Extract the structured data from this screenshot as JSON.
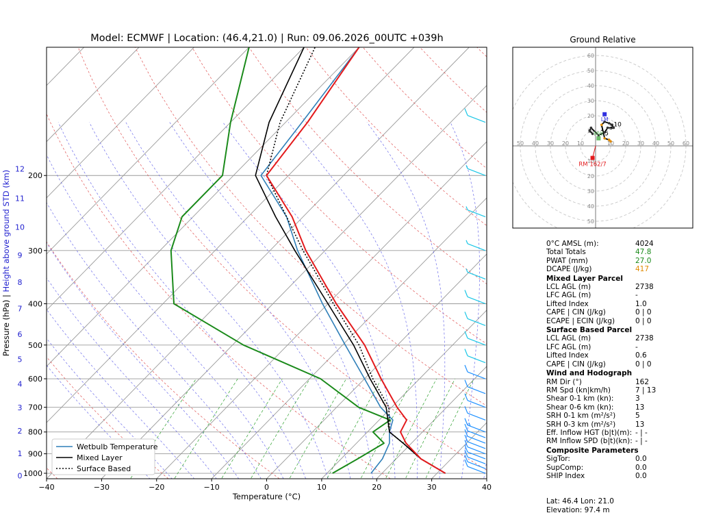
{
  "title": "Model: ECMWF | Location: (46.4,21.0) | Run: 09.06.2026_00UTC +039h",
  "hodo_title": "Ground Relative",
  "colors": {
    "temperature": "#e31a1c",
    "dewpoint": "#1a8a1a",
    "wetbulb": "#2f7fb8",
    "parcel": "#000000",
    "wind": "#1e90ff",
    "height": "#1f1fcf"
  },
  "chart_data": [
    {
      "type": "line",
      "name": "skew-t",
      "xlabel": "Temperature (°C)",
      "ylabel": "Pressure (hPa)   |   Height above ground STD (km)",
      "xlim": [
        -40,
        40
      ],
      "ylim": [
        1030,
        100
      ],
      "y_scale": "log",
      "x_ticks": [
        "−40",
        "−30",
        "−20",
        "−10",
        "0",
        "10",
        "20",
        "30",
        "40"
      ],
      "p_ticks": [
        "1000",
        "900",
        "800",
        "700",
        "600",
        "500",
        "400",
        "300",
        "200"
      ],
      "km_ticks": [
        "0",
        "1",
        "2",
        "3",
        "4",
        "5",
        "6",
        "7",
        "8",
        "9",
        "10",
        "11",
        "12"
      ],
      "legend": {
        "placement": "bottom-left",
        "entries": [
          "Wetbulb Temperature",
          "Mixed Layer",
          "Surface Based"
        ]
      },
      "temperature": [
        [
          1000,
          31.5
        ],
        [
          925,
          24.5
        ],
        [
          850,
          19
        ],
        [
          800,
          16
        ],
        [
          750,
          15
        ],
        [
          700,
          11
        ],
        [
          600,
          3
        ],
        [
          500,
          -6
        ],
        [
          400,
          -18.5
        ],
        [
          300,
          -33.5
        ],
        [
          250,
          -42
        ],
        [
          200,
          -54
        ],
        [
          150,
          -56
        ],
        [
          100,
          -60
        ]
      ],
      "dewpoint": [
        [
          1000,
          11
        ],
        [
          925,
          13
        ],
        [
          850,
          15
        ],
        [
          800,
          11
        ],
        [
          750,
          12
        ],
        [
          700,
          4
        ],
        [
          600,
          -8
        ],
        [
          500,
          -28
        ],
        [
          400,
          -48
        ],
        [
          300,
          -58
        ],
        [
          250,
          -62
        ],
        [
          200,
          -62
        ],
        [
          150,
          -70
        ],
        [
          100,
          -80
        ]
      ],
      "wetbulb": [
        [
          1000,
          18
        ],
        [
          925,
          17.5
        ],
        [
          850,
          16
        ],
        [
          800,
          14
        ],
        [
          750,
          12.5
        ],
        [
          700,
          8
        ],
        [
          600,
          0
        ],
        [
          500,
          -9.5
        ],
        [
          400,
          -21
        ],
        [
          300,
          -35
        ],
        [
          250,
          -43
        ],
        [
          200,
          -55
        ],
        [
          150,
          -57
        ],
        [
          100,
          -60
        ]
      ],
      "mixed_layer": [
        [
          1000,
          31.5
        ],
        [
          925,
          24.5
        ],
        [
          850,
          18.5
        ],
        [
          800,
          14
        ],
        [
          700,
          9
        ],
        [
          600,
          1
        ],
        [
          500,
          -8
        ],
        [
          400,
          -20
        ],
        [
          300,
          -35.5
        ],
        [
          250,
          -45
        ],
        [
          200,
          -56
        ],
        [
          150,
          -63
        ],
        [
          100,
          -70
        ]
      ],
      "surface_based": [
        [
          1000,
          31.5
        ],
        [
          925,
          24.5
        ],
        [
          850,
          18.5
        ],
        [
          800,
          14
        ],
        [
          700,
          9.5
        ],
        [
          600,
          1.5
        ],
        [
          500,
          -7
        ],
        [
          400,
          -19
        ],
        [
          300,
          -34
        ],
        [
          250,
          -43
        ],
        [
          200,
          -54
        ],
        [
          150,
          -61
        ],
        [
          100,
          -68
        ]
      ],
      "winds": [
        [
          1000,
          10
        ],
        [
          975,
          10
        ],
        [
          950,
          12
        ],
        [
          925,
          12
        ],
        [
          900,
          13
        ],
        [
          875,
          13
        ],
        [
          850,
          14
        ],
        [
          825,
          14
        ],
        [
          800,
          15
        ],
        [
          750,
          14
        ],
        [
          700,
          14
        ],
        [
          650,
          13
        ],
        [
          600,
          12
        ],
        [
          550,
          12
        ],
        [
          500,
          11
        ],
        [
          450,
          10
        ],
        [
          400,
          10
        ],
        [
          350,
          8
        ],
        [
          300,
          7
        ],
        [
          250,
          8
        ],
        [
          200,
          9
        ],
        [
          150,
          11
        ]
      ]
    },
    {
      "type": "scatter",
      "name": "hodograph",
      "title": "Ground Relative",
      "rings": [
        "10",
        "20",
        "30",
        "40",
        "50",
        "60"
      ],
      "points": [
        [
          -2,
          8
        ],
        [
          -4,
          10
        ],
        [
          -3,
          12
        ],
        [
          2,
          7
        ],
        [
          6,
          9
        ],
        [
          8,
          12
        ],
        [
          12,
          12
        ],
        [
          11,
          14
        ],
        [
          9,
          15
        ],
        [
          6,
          16
        ],
        [
          4,
          14
        ],
        [
          6,
          5
        ],
        [
          9,
          4
        ],
        [
          10,
          3
        ]
      ],
      "labels": [
        "10",
        "3",
        "1",
        "5"
      ],
      "lm": {
        "label": "LM",
        "x": 6,
        "y": 21
      },
      "mw": {
        "label": "MW",
        "x": 2,
        "y": 5
      },
      "rm": {
        "label": "RM 162/7",
        "x": -2,
        "y": -8
      }
    }
  ],
  "params": [
    {
      "type": "row",
      "label": "0°C AMSL (m):",
      "value": "4024"
    },
    {
      "type": "row",
      "label": "Total Totals",
      "value": "47.8",
      "color": "#1a8a1a"
    },
    {
      "type": "row",
      "label": "PWAT (mm)",
      "value": "27.0",
      "color": "#1a8a1a"
    },
    {
      "type": "row",
      "label": "DCAPE (J/kg)",
      "value": "417",
      "color": "#e08a00"
    },
    {
      "type": "hdr",
      "label": "Mixed Layer Parcel"
    },
    {
      "type": "row",
      "label": "LCL AGL (m)",
      "value": "2738"
    },
    {
      "type": "row",
      "label": "LFC AGL (m)",
      "value": "-"
    },
    {
      "type": "row",
      "label": "Lifted Index",
      "value": "1.0"
    },
    {
      "type": "row",
      "label": "CAPE | CIN (J/kg)",
      "value": "0  | 0"
    },
    {
      "type": "row",
      "label": "ECAPE | ECIN (J/kg)",
      "value": "0  | 0"
    },
    {
      "type": "hdr",
      "label": "Surface Based Parcel"
    },
    {
      "type": "row",
      "label": "LCL AGL (m)",
      "value": "2738"
    },
    {
      "type": "row",
      "label": "LFC AGL (m)",
      "value": "-"
    },
    {
      "type": "row",
      "label": "Lifted Index",
      "value": "0.6"
    },
    {
      "type": "row",
      "label": "CAPE | CIN (J/kg)",
      "value": "0  | 0"
    },
    {
      "type": "hdr",
      "label": "Wind and Hodograph"
    },
    {
      "type": "row",
      "label": "RM Dir (°)",
      "value": "162"
    },
    {
      "type": "row",
      "label": "RM Spd (kn|km/h)",
      "value": "7 | 13"
    },
    {
      "type": "row",
      "label": "Shear 0-1 km (kn):",
      "value": "3"
    },
    {
      "type": "row",
      "label": "Shear 0-6 km (kn):",
      "value": "13"
    },
    {
      "type": "row",
      "label": "SRH 0-1 km (m²/s²)",
      "value": "5"
    },
    {
      "type": "row",
      "label": "SRH 0-3 km (m²/s²)",
      "value": "13"
    },
    {
      "type": "row",
      "label": "Eff. Inflow HGT (b|t)(m):",
      "value": "- | -"
    },
    {
      "type": "row",
      "label": "RM Inflow SPD (b|t)(kn):",
      "value": "- | -"
    },
    {
      "type": "hdr",
      "label": "Composite Parameters"
    },
    {
      "type": "row",
      "label": "SigTor:",
      "value": "0.0"
    },
    {
      "type": "row",
      "label": "SupComp:",
      "value": "0.0"
    },
    {
      "type": "row",
      "label": "SHIP Index",
      "value": "0.0"
    }
  ],
  "footer": {
    "latlon": "Lat: 46.4  Lon: 21.0",
    "elevation": "Elevation: 97.4 m"
  }
}
